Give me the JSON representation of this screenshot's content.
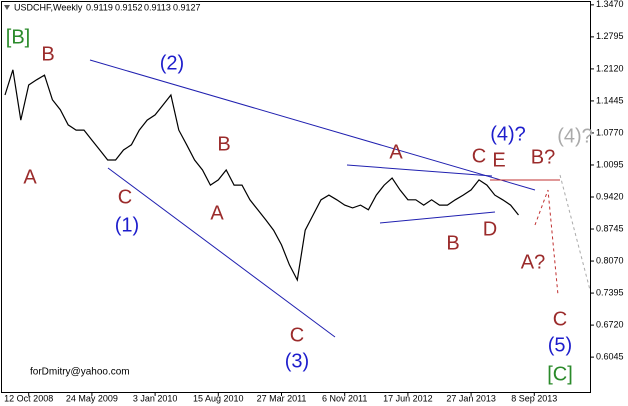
{
  "chart_data": {
    "type": "line",
    "title": "USDCHF,Weekly",
    "ohlc": [
      0.9119,
      0.9152,
      0.9113,
      0.9127
    ],
    "footer": "forDmitry@yahoo.com",
    "color": "#000000",
    "grid": false,
    "categories": [
      null,
      null,
      null,
      "12 Oct 2008",
      null,
      null,
      null,
      null,
      null,
      null,
      null,
      "24 May 2009",
      null,
      null,
      null,
      null,
      null,
      null,
      null,
      "3 Jan 2010",
      null,
      null,
      null,
      null,
      null,
      null,
      null,
      "15 Aug 2010",
      null,
      null,
      null,
      null,
      null,
      null,
      null,
      "27 Mar 2011",
      null,
      null,
      null,
      null,
      null,
      null,
      null,
      "6 Nov 2011",
      null,
      null,
      null,
      null,
      null,
      null,
      null,
      "17 Jun 2012",
      null,
      null,
      null,
      null,
      null,
      null,
      null,
      "27 Jan 2013",
      null,
      null,
      null,
      null,
      null,
      null,
      null,
      "8 Sep 2013"
    ],
    "values": [
      1.157,
      1.21,
      1.104,
      1.178,
      1.189,
      1.199,
      1.147,
      1.126,
      1.094,
      1.083,
      1.083,
      1.062,
      1.041,
      1.02,
      1.02,
      1.041,
      1.052,
      1.083,
      1.104,
      1.115,
      1.136,
      1.157,
      1.083,
      1.052,
      1.02,
      0.999,
      0.967,
      0.978,
      0.999,
      0.967,
      0.967,
      0.936,
      0.915,
      0.894,
      0.872,
      0.841,
      0.799,
      0.767,
      0.872,
      0.904,
      0.936,
      0.946,
      0.936,
      0.925,
      0.919,
      0.925,
      0.915,
      0.946,
      0.967,
      0.982,
      0.957,
      0.936,
      0.936,
      0.925,
      0.936,
      0.925,
      0.925,
      0.936,
      0.946,
      0.957,
      0.978,
      0.967,
      0.946,
      0.936,
      0.925,
      0.904,
      null,
      null
    ],
    "ylim": [
      0.531,
      1.353
    ],
    "yticks": [
      {
        "value": 1.347,
        "label": "1.3470"
      },
      {
        "value": 1.2795,
        "label": "1.2795"
      },
      {
        "value": 1.212,
        "label": "1.2120"
      },
      {
        "value": 1.1445,
        "label": "1.1445"
      },
      {
        "value": 1.077,
        "label": "1.0770"
      },
      {
        "value": 1.0095,
        "label": "1.0095"
      },
      {
        "value": 0.942,
        "label": "0.9420"
      },
      {
        "value": 0.8745,
        "label": "0.8745"
      },
      {
        "value": 0.807,
        "label": "0.8070"
      },
      {
        "value": 0.7395,
        "label": "0.7395"
      },
      {
        "value": 0.672,
        "label": "0.6720"
      },
      {
        "value": 0.6045,
        "label": "0.6045"
      }
    ],
    "annotations": [
      {
        "text": "[B]",
        "color": "#2a8a2a"
      },
      {
        "text": "B",
        "color": "#9b2b2b"
      },
      {
        "text": "A",
        "color": "#9b2b2b"
      },
      {
        "text": "C",
        "color": "#9b2b2b"
      },
      {
        "text": "(1)",
        "color": "#1d1dcc"
      },
      {
        "text": "(2)",
        "color": "#1d1dcc"
      },
      {
        "text": "B",
        "color": "#9b2b2b"
      },
      {
        "text": "A",
        "color": "#9b2b2b"
      },
      {
        "text": "C",
        "color": "#9b2b2b"
      },
      {
        "text": "(3)",
        "color": "#1d1dcc"
      },
      {
        "text": "A",
        "color": "#9b2b2b"
      },
      {
        "text": "B",
        "color": "#9b2b2b"
      },
      {
        "text": "C",
        "color": "#9b2b2b"
      },
      {
        "text": "E",
        "color": "#9b2b2b"
      },
      {
        "text": "D",
        "color": "#9b2b2b"
      },
      {
        "text": "(4)?",
        "color": "#1d1dcc"
      },
      {
        "text": "B?",
        "color": "#9b2b2b"
      },
      {
        "text": "(4)?",
        "color": "#aaaaaa"
      },
      {
        "text": "A?",
        "color": "#9b2b2b"
      },
      {
        "text": "C",
        "color": "#9b2b2b"
      },
      {
        "text": "(5)",
        "color": "#1d1dcc"
      },
      {
        "text": "[C]",
        "color": "#2a8a2a"
      }
    ]
  }
}
